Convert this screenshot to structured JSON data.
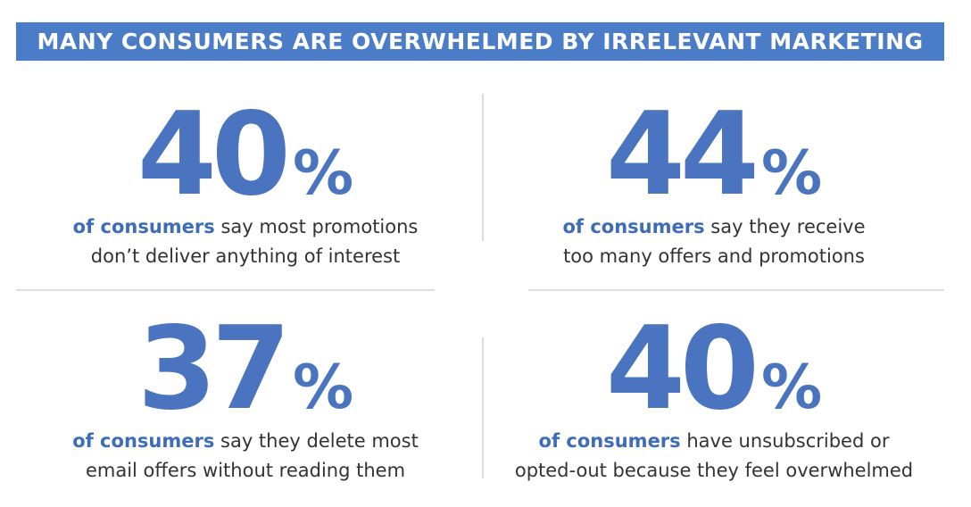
{
  "header": {
    "title": "MANY CONSUMERS ARE OVERWHELMED BY IRRELEVANT MARKETING"
  },
  "stats": [
    {
      "number": 40,
      "unit": "%",
      "lead": "of consumers",
      "lines": [
        "say most promotions",
        "don’t deliver anything of interest"
      ]
    },
    {
      "number": 44,
      "unit": "%",
      "lead": "of consumers",
      "lines": [
        "say they receive",
        "too many offers and promotions"
      ]
    },
    {
      "number": 37,
      "unit": "%",
      "lead": "of consumers",
      "lines": [
        "say they delete most",
        "email offers without reading them"
      ]
    },
    {
      "number": 40,
      "unit": "%",
      "lead": "of consumers",
      "lines": [
        "have unsubscribed or",
        "opted-out because they feel overwhelmed"
      ]
    }
  ]
}
